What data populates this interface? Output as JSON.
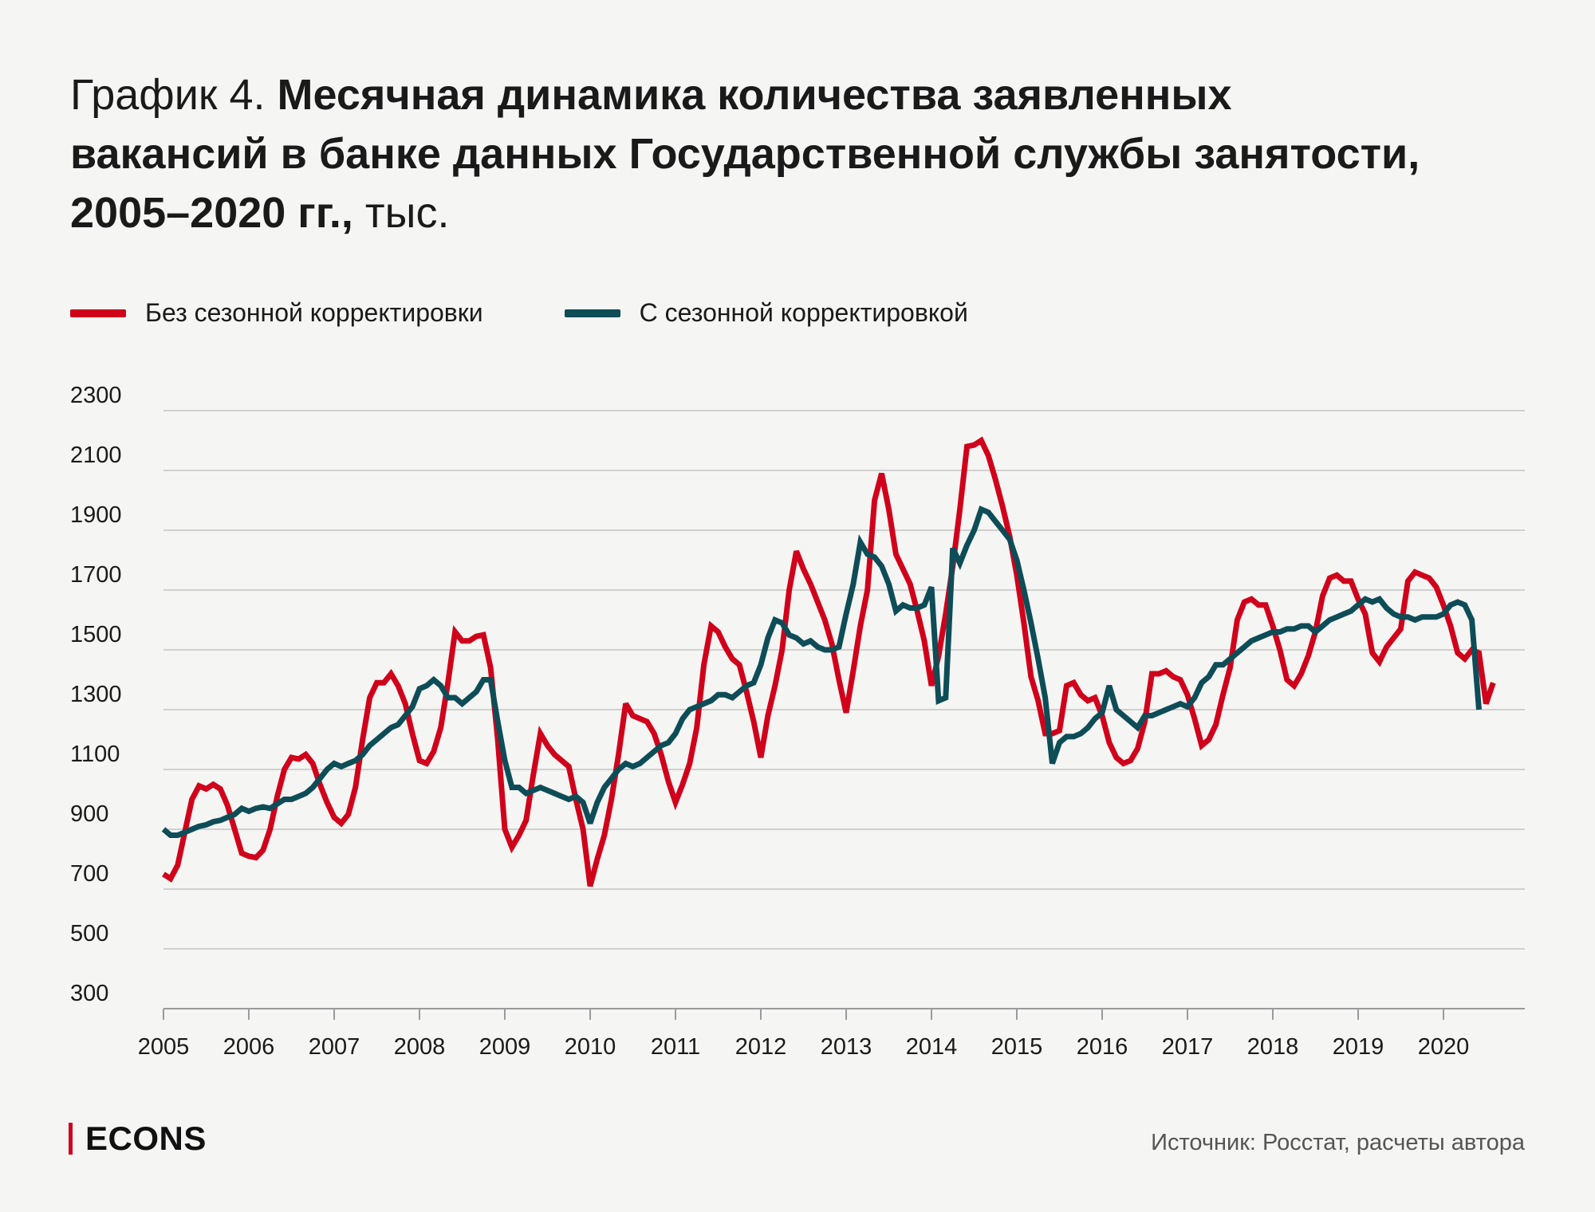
{
  "header": {
    "prefix": "График 4. ",
    "title_bold": "Месячная динамика количества заявленных вакансий в банке данных Государственной службы занятости, 2005–2020 гг.,",
    "unit": " тыс."
  },
  "footer": {
    "logo": "ECONS",
    "source": "Источник: Росстат, расчеты автора"
  },
  "colors": {
    "raw": "#d0021b",
    "adjusted": "#0e4d57",
    "grid": "#c4c4c4",
    "accent": "#d0021b"
  },
  "chart_data": {
    "type": "line",
    "title": "Месячная динамика количества заявленных вакансий в банке данных Государственной службы занятости, 2005–2020 гг., тыс.",
    "xlabel": "",
    "ylabel": "",
    "ylim": [
      300,
      2300
    ],
    "xlim": [
      2005,
      2021
    ],
    "grid": true,
    "legend_position": "top-left",
    "y_ticks": [
      2300,
      2100,
      1900,
      1700,
      1500,
      1300,
      1100,
      900,
      700,
      500,
      300
    ],
    "x_ticks": [
      2005,
      2006,
      2007,
      2008,
      2009,
      2010,
      2011,
      2012,
      2013,
      2014,
      2015,
      2016,
      2017,
      2018,
      2019,
      2020
    ],
    "x_tick_labels": [
      "2005",
      "2006",
      "2007",
      "2008",
      "2009",
      "2010",
      "2011",
      "2012",
      "2013",
      "2014",
      "2015",
      "2016",
      "2017",
      "2018",
      "2019",
      "2020"
    ],
    "series": [
      {
        "name": "Без сезонной корректировки",
        "key": "raw",
        "x_start": 2005.0,
        "step": 0.08333,
        "values": [
          750,
          735,
          780,
          890,
          1000,
          1045,
          1035,
          1050,
          1035,
          980,
          900,
          820,
          810,
          805,
          830,
          900,
          1010,
          1100,
          1140,
          1135,
          1150,
          1120,
          1050,
          990,
          940,
          920,
          950,
          1040,
          1200,
          1340,
          1390,
          1390,
          1420,
          1380,
          1320,
          1220,
          1130,
          1120,
          1160,
          1240,
          1390,
          1560,
          1530,
          1530,
          1545,
          1550,
          1440,
          1200,
          900,
          840,
          880,
          930,
          1080,
          1220,
          1180,
          1150,
          1130,
          1110,
          1000,
          900,
          710,
          800,
          880,
          1000,
          1150,
          1320,
          1280,
          1270,
          1260,
          1220,
          1150,
          1060,
          990,
          1050,
          1120,
          1240,
          1450,
          1580,
          1560,
          1510,
          1470,
          1450,
          1360,
          1260,
          1140,
          1280,
          1380,
          1500,
          1700,
          1830,
          1770,
          1720,
          1660,
          1600,
          1520,
          1400,
          1290,
          1430,
          1580,
          1700,
          2000,
          2090,
          1970,
          1820,
          1770,
          1720,
          1630,
          1530,
          1380,
          1480,
          1620,
          1780,
          1970,
          2180,
          2185,
          2200,
          2150,
          2070,
          1980,
          1880,
          1750,
          1590,
          1410,
          1330,
          1220,
          1220,
          1230,
          1380,
          1390,
          1350,
          1330,
          1340,
          1280,
          1190,
          1140,
          1120,
          1130,
          1170,
          1260,
          1420,
          1420,
          1430,
          1410,
          1400,
          1350,
          1270,
          1180,
          1200,
          1250,
          1350,
          1440,
          1600,
          1660,
          1670,
          1650,
          1650,
          1580,
          1500,
          1400,
          1380,
          1420,
          1480,
          1560,
          1680,
          1740,
          1750,
          1730,
          1730,
          1670,
          1620,
          1490,
          1460,
          1510,
          1540,
          1570,
          1730,
          1760,
          1750,
          1740,
          1710,
          1650,
          1580,
          1490,
          1470,
          1500,
          1490,
          1320,
          1390
        ]
      },
      {
        "name": "С сезонной корректировкой",
        "key": "adjusted",
        "x_start": 2005.0,
        "step": 0.08333,
        "values": [
          900,
          880,
          880,
          890,
          900,
          910,
          915,
          925,
          930,
          940,
          950,
          970,
          960,
          970,
          975,
          970,
          985,
          1000,
          1000,
          1010,
          1020,
          1040,
          1070,
          1100,
          1120,
          1110,
          1120,
          1130,
          1150,
          1180,
          1200,
          1220,
          1240,
          1250,
          1280,
          1310,
          1370,
          1380,
          1400,
          1380,
          1340,
          1340,
          1320,
          1340,
          1360,
          1400,
          1400,
          1260,
          1130,
          1040,
          1040,
          1020,
          1030,
          1040,
          1030,
          1020,
          1010,
          1000,
          1010,
          990,
          920,
          990,
          1040,
          1070,
          1100,
          1120,
          1110,
          1120,
          1140,
          1160,
          1180,
          1190,
          1220,
          1270,
          1300,
          1310,
          1320,
          1330,
          1350,
          1350,
          1340,
          1360,
          1380,
          1390,
          1450,
          1540,
          1600,
          1590,
          1550,
          1540,
          1520,
          1530,
          1510,
          1500,
          1500,
          1510,
          1620,
          1720,
          1860,
          1820,
          1810,
          1780,
          1720,
          1630,
          1650,
          1640,
          1640,
          1650,
          1710,
          1330,
          1340,
          1840,
          1790,
          1850,
          1900,
          1970,
          1960,
          1930,
          1900,
          1870,
          1800,
          1700,
          1590,
          1470,
          1340,
          1120,
          1190,
          1210,
          1210,
          1220,
          1240,
          1270,
          1290,
          1380,
          1300,
          1280,
          1260,
          1240,
          1280,
          1280,
          1290,
          1300,
          1310,
          1320,
          1310,
          1340,
          1390,
          1410,
          1450,
          1450,
          1470,
          1490,
          1510,
          1530,
          1540,
          1550,
          1560,
          1560,
          1570,
          1570,
          1580,
          1580,
          1560,
          1580,
          1600,
          1610,
          1620,
          1630,
          1650,
          1670,
          1660,
          1670,
          1640,
          1620,
          1610,
          1610,
          1600,
          1610,
          1610,
          1610,
          1620,
          1650,
          1660,
          1650,
          1600,
          1300
        ]
      }
    ]
  }
}
